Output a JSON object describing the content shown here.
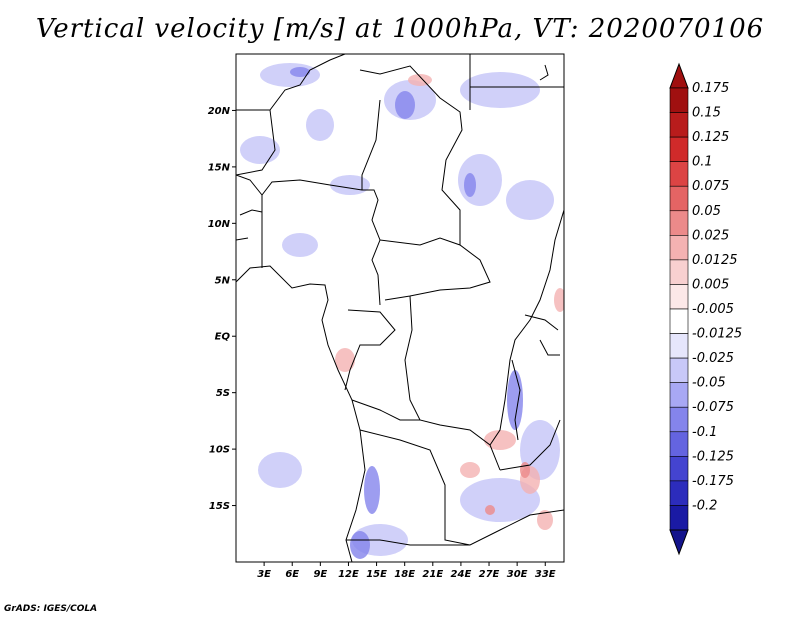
{
  "title": "Vertical velocity [m/s] at 1000hPa, VT: 2020070106",
  "credit": "GrADS: IGES/COLA",
  "map": {
    "lat_ticks": [
      {
        "label": "20N",
        "value": 20
      },
      {
        "label": "15N",
        "value": 15
      },
      {
        "label": "10N",
        "value": 10
      },
      {
        "label": "5N",
        "value": 5
      },
      {
        "label": "EQ",
        "value": 0
      },
      {
        "label": "5S",
        "value": -5
      },
      {
        "label": "10S",
        "value": -10
      },
      {
        "label": "15S",
        "value": -15
      }
    ],
    "lon_ticks": [
      {
        "label": "3E",
        "value": 3
      },
      {
        "label": "6E",
        "value": 6
      },
      {
        "label": "9E",
        "value": 9
      },
      {
        "label": "12E",
        "value": 12
      },
      {
        "label": "15E",
        "value": 15
      },
      {
        "label": "18E",
        "value": 18
      },
      {
        "label": "21E",
        "value": 21
      },
      {
        "label": "24E",
        "value": 24
      },
      {
        "label": "27E",
        "value": 27
      },
      {
        "label": "30E",
        "value": 30
      },
      {
        "label": "33E",
        "value": 33
      }
    ],
    "lat_range": [
      -20,
      25
    ],
    "lon_range": [
      0,
      35
    ]
  },
  "colorbar": {
    "levels": [
      {
        "label": "0.175",
        "color": "#a01010"
      },
      {
        "label": "0.15",
        "color": "#b81c1c"
      },
      {
        "label": "0.125",
        "color": "#d02a2a"
      },
      {
        "label": "0.1",
        "color": "#dc4444"
      },
      {
        "label": "0.075",
        "color": "#e46464"
      },
      {
        "label": "0.05",
        "color": "#ec8a8a"
      },
      {
        "label": "0.025",
        "color": "#f4b2b2"
      },
      {
        "label": "0.0125",
        "color": "#f8d0d0"
      },
      {
        "label": "0.005",
        "color": "#fce8e8"
      },
      {
        "label": "-0.005",
        "color": "#ffffff"
      },
      {
        "label": "-0.0125",
        "color": "#e6e6fc"
      },
      {
        "label": "-0.025",
        "color": "#c8c8f8"
      },
      {
        "label": "-0.05",
        "color": "#a8a8f4"
      },
      {
        "label": "-0.075",
        "color": "#8484ec"
      },
      {
        "label": "-0.1",
        "color": "#6464e0"
      },
      {
        "label": "-0.125",
        "color": "#4444d0"
      },
      {
        "label": "-0.175",
        "color": "#2c2cbc"
      },
      {
        "label": "-0.2",
        "color": "#1a1aa4"
      }
    ],
    "top_cap_color": "#a01010",
    "bottom_cap_color": "#14148c"
  }
}
